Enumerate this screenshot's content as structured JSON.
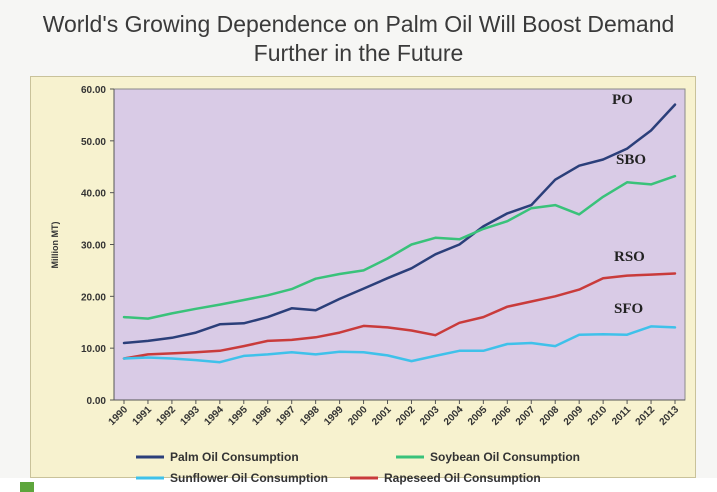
{
  "chart_data": {
    "type": "line",
    "title_lines": [
      "World's Growing Dependence on Palm Oil Will Boost Demand",
      "Further in the Future"
    ],
    "ylabel": "Million MT)",
    "xlabel": "",
    "ylim": [
      0,
      60
    ],
    "yticks": [
      "0.00",
      "10.00",
      "20.00",
      "30.00",
      "40.00",
      "50.00",
      "60.00"
    ],
    "x": [
      "1990",
      "1991",
      "1992",
      "1993",
      "1994",
      "1995",
      "1996",
      "1997",
      "1998",
      "1999",
      "2000",
      "2001",
      "2002",
      "2003",
      "2004",
      "2005",
      "2006",
      "2007",
      "2008",
      "2009",
      "2010",
      "2011",
      "2012",
      "2013"
    ],
    "grid": false,
    "legend_position": "bottom",
    "plot_background": "#d9cbe6",
    "series": [
      {
        "name": "Palm Oil Consumption",
        "tag": "PO",
        "color": "#2b3f7a",
        "values": [
          11.0,
          11.4,
          12.0,
          13.0,
          14.6,
          14.8,
          16.0,
          17.7,
          17.3,
          19.5,
          21.5,
          23.5,
          25.4,
          28.1,
          30.0,
          33.5,
          36.0,
          37.6,
          42.5,
          45.2,
          46.4,
          48.5,
          52.0,
          57.0
        ]
      },
      {
        "name": "Soybean Oil Consumption",
        "tag": "SBO",
        "color": "#39c27a",
        "values": [
          16.0,
          15.7,
          16.7,
          17.6,
          18.4,
          19.3,
          20.2,
          21.4,
          23.4,
          24.3,
          25.0,
          27.3,
          30.0,
          31.3,
          31.0,
          33.0,
          34.5,
          37.0,
          37.6,
          35.8,
          39.2,
          42.0,
          41.6,
          43.2
        ]
      },
      {
        "name": "Rapeseed Oil Consumption",
        "tag": "RSO",
        "color": "#c93b3b",
        "values": [
          8.0,
          8.8,
          9.0,
          9.2,
          9.5,
          10.4,
          11.4,
          11.6,
          12.1,
          13.0,
          14.3,
          14.0,
          13.4,
          12.5,
          14.9,
          16.0,
          18.0,
          19.0,
          20.0,
          21.3,
          23.5,
          24.0,
          24.2,
          24.4
        ]
      },
      {
        "name": "Sunflower Oil Consumption",
        "tag": "SFO",
        "color": "#3fc1ea",
        "values": [
          8.0,
          8.2,
          8.0,
          7.7,
          7.3,
          8.5,
          8.8,
          9.2,
          8.8,
          9.3,
          9.2,
          8.6,
          7.5,
          8.5,
          9.5,
          9.5,
          10.8,
          11.0,
          10.4,
          12.6,
          12.7,
          12.6,
          14.2,
          14.0
        ]
      }
    ],
    "legend_order": [
      0,
      1,
      3,
      2
    ]
  }
}
